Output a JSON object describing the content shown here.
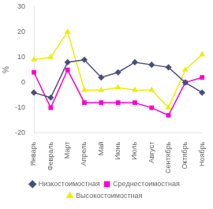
{
  "chart_data": {
    "type": "line",
    "categories": [
      "Январь",
      "Февраль",
      "Март",
      "Апрель",
      "Май",
      "Июнь",
      "Июль",
      "Август",
      "Сентябрь",
      "Октябрь",
      "Ноябрь"
    ],
    "series": [
      {
        "name": "Низкостоимостная",
        "color": "#4a4f7a",
        "marker": "diamond",
        "values": [
          -4,
          -6,
          8,
          9,
          2,
          4,
          8,
          7,
          6,
          0,
          -4
        ]
      },
      {
        "name": "Среднестоимостная",
        "color": "#ff00cc",
        "marker": "square",
        "values": [
          4,
          -10,
          5,
          -8,
          -8,
          -8,
          -8,
          -10,
          -13,
          0,
          2
        ]
      },
      {
        "name": "Высокостоимостная",
        "color": "#eeee00",
        "marker": "triangle",
        "values": [
          9,
          10,
          20,
          -3,
          -3,
          -2,
          -3,
          -3,
          -10,
          5,
          11
        ]
      }
    ],
    "y_label": "%",
    "ylim": [
      -20,
      30
    ],
    "yticks": [
      -20,
      -10,
      0,
      10,
      20,
      30
    ],
    "grid": false,
    "legend": "bottom"
  }
}
